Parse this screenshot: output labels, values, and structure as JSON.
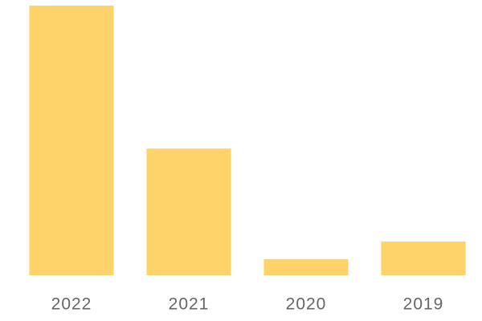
{
  "chart_data": {
    "type": "bar",
    "categories": [
      "2022",
      "2021",
      "2020",
      "2019"
    ],
    "values": [
      100,
      47,
      6,
      12.5
    ],
    "color": "#fdd36a",
    "ylim": [
      0,
      100
    ]
  }
}
